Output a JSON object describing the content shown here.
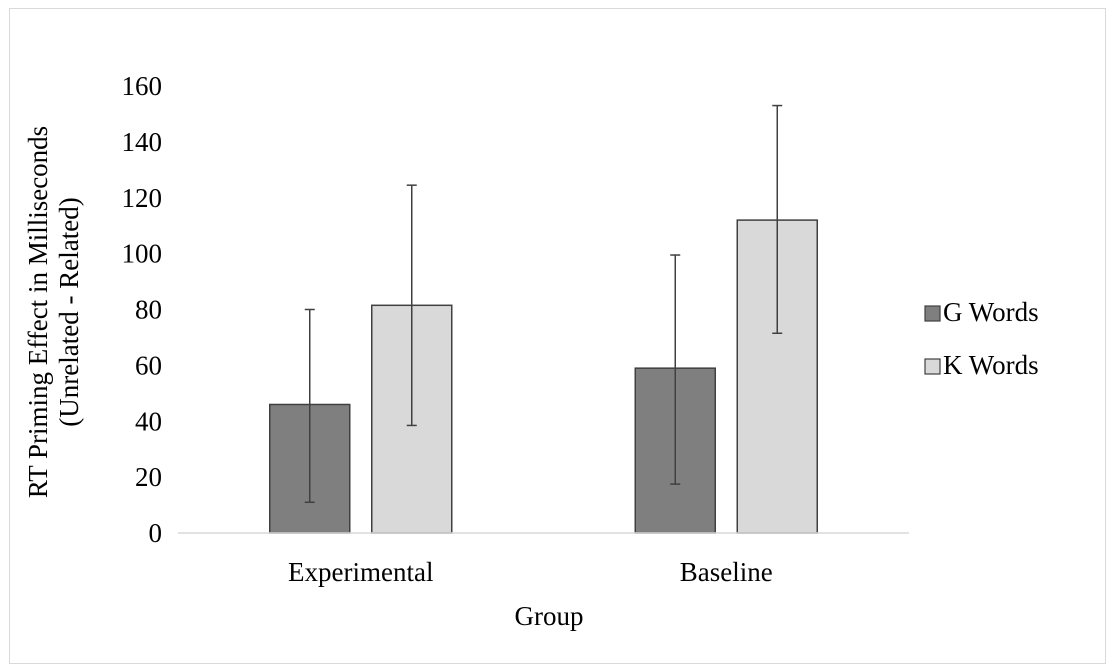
{
  "chart_data": {
    "type": "bar",
    "title": "",
    "xlabel": "Group",
    "ylabel_line1": "RT Priming Effect in Milliseconds",
    "ylabel_line2": "(Unrelated - Related)",
    "ylim": [
      0,
      160
    ],
    "yticks": [
      "0",
      "20",
      "40",
      "60",
      "80",
      "100",
      "120",
      "140",
      "160"
    ],
    "ytick_values": [
      0,
      20,
      40,
      60,
      80,
      100,
      120,
      140,
      160
    ],
    "grid": false,
    "legend_position": "right",
    "categories": [
      "Experimental",
      "Baseline"
    ],
    "series": [
      {
        "name": "G Words",
        "color": "#7f7f7f",
        "values": [
          46,
          59
        ],
        "error_low": [
          11,
          17.5
        ],
        "error_high": [
          80,
          99.5
        ]
      },
      {
        "name": "K Words",
        "color": "#d9d9d9",
        "values": [
          81.5,
          112
        ],
        "error_low": [
          38.5,
          71.5
        ],
        "error_high": [
          124.5,
          153
        ]
      }
    ]
  }
}
